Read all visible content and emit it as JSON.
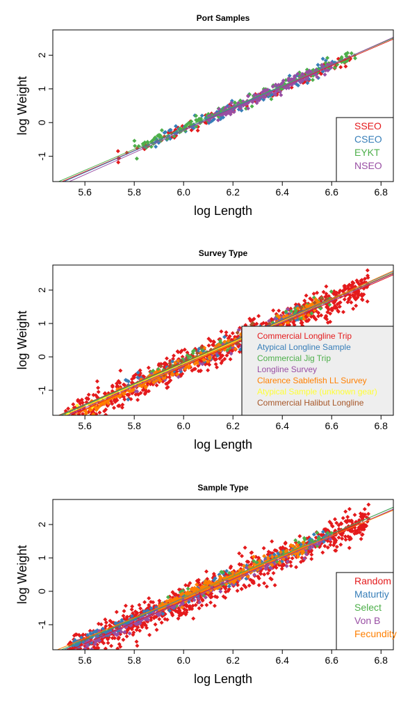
{
  "figure": {
    "axis_style": {
      "frame_color": "#000000"
    }
  },
  "chart_data": [
    {
      "type": "scatter",
      "title": "Port Samples",
      "xlabel": "log Length",
      "ylabel": "log Weight",
      "xlim": [
        5.47,
        6.85
      ],
      "ylim": [
        -1.75,
        2.75
      ],
      "xticks": [
        5.6,
        5.8,
        6.0,
        6.2,
        6.4,
        6.6,
        6.8
      ],
      "yticks": [
        -1,
        0,
        1,
        2
      ],
      "xtick_labels": [
        "5.6",
        "5.8",
        "6.0",
        "6.2",
        "6.4",
        "6.6",
        "6.8"
      ],
      "ytick_labels": [
        "-1",
        "0",
        "1",
        "2"
      ],
      "grid": false,
      "legend": {
        "position": "bottom-right",
        "background": "#ffffff",
        "font_size": "large"
      },
      "series": [
        {
          "name": "SSEO",
          "color": "#e41a1c",
          "x_range": [
            5.73,
            6.68
          ],
          "n": 110,
          "spread": 0.09,
          "fit": {
            "intercept": -19.1,
            "slope": 3.15
          }
        },
        {
          "name": "CSEO",
          "color": "#377eb8",
          "x_range": [
            5.88,
            6.62
          ],
          "n": 120,
          "spread": 0.1,
          "fit": {
            "intercept": -19.4,
            "slope": 3.2
          }
        },
        {
          "name": "EYKT",
          "color": "#4daf4a",
          "x_range": [
            5.8,
            6.72
          ],
          "n": 140,
          "spread": 0.09,
          "fit": {
            "intercept": -19.0,
            "slope": 3.14
          }
        },
        {
          "name": "NSEO",
          "color": "#984ea3",
          "x_range": [
            6.1,
            6.6
          ],
          "n": 170,
          "spread": 0.08,
          "fit": {
            "intercept": -19.8,
            "slope": 3.26
          }
        }
      ]
    },
    {
      "type": "scatter",
      "title": "Survey Type",
      "xlabel": "log Length",
      "ylabel": "log Weight",
      "xlim": [
        5.47,
        6.85
      ],
      "ylim": [
        -1.75,
        2.75
      ],
      "xticks": [
        5.6,
        5.8,
        6.0,
        6.2,
        6.4,
        6.6,
        6.8
      ],
      "yticks": [
        -1,
        0,
        1,
        2
      ],
      "xtick_labels": [
        "5.6",
        "5.8",
        "6.0",
        "6.2",
        "6.4",
        "6.6",
        "6.8"
      ],
      "ytick_labels": [
        "-1",
        "0",
        "1",
        "2"
      ],
      "grid": false,
      "legend": {
        "position": "bottom-right",
        "background": "#eeeeee",
        "font_size": "small"
      },
      "series": [
        {
          "name": "Commercial Longline Trip",
          "color": "#e41a1c",
          "x_range": [
            5.52,
            6.75
          ],
          "n": 900,
          "spread": 0.22,
          "fit": {
            "intercept": -19.6,
            "slope": 3.22
          }
        },
        {
          "name": "Atypical Longline Sample",
          "color": "#377eb8",
          "x_range": [
            5.75,
            6.5
          ],
          "n": 80,
          "spread": 0.12,
          "fit": {
            "intercept": -19.3,
            "slope": 3.19
          }
        },
        {
          "name": "Commercial Jig Trip",
          "color": "#4daf4a",
          "x_range": [
            5.85,
            6.6
          ],
          "n": 110,
          "spread": 0.12,
          "fit": {
            "intercept": -19.2,
            "slope": 3.17
          }
        },
        {
          "name": "Longline Survey",
          "color": "#984ea3",
          "x_range": [
            5.8,
            6.5
          ],
          "n": 70,
          "spread": 0.12,
          "fit": {
            "intercept": -19.5,
            "slope": 3.21
          }
        },
        {
          "name": "Clarence Sablefish LL Survey",
          "color": "#ff7f00",
          "x_range": [
            5.6,
            6.55
          ],
          "n": 260,
          "spread": 0.1,
          "fit": {
            "intercept": -20.3,
            "slope": 3.34
          }
        },
        {
          "name": "Atypical Sample (unknown gear)",
          "color": "#ffff33",
          "x_range": [
            5.52,
            5.7
          ],
          "n": 6,
          "spread": 0.08,
          "fit": {
            "intercept": -19.4,
            "slope": 3.2
          }
        },
        {
          "name": "Commercial Halibut Longline",
          "color": "#a65628",
          "x_range": [
            5.9,
            6.6
          ],
          "n": 30,
          "spread": 0.12,
          "fit": {
            "intercept": -19.0,
            "slope": 3.14
          }
        }
      ]
    },
    {
      "type": "scatter",
      "title": "Sample Type",
      "xlabel": "log Length",
      "ylabel": "log Weight",
      "xlim": [
        5.47,
        6.85
      ],
      "ylim": [
        -1.75,
        2.75
      ],
      "xticks": [
        5.6,
        5.8,
        6.0,
        6.2,
        6.4,
        6.6,
        6.8
      ],
      "yticks": [
        -1,
        0,
        1,
        2
      ],
      "xtick_labels": [
        "5.6",
        "5.8",
        "6.0",
        "6.2",
        "6.4",
        "6.6",
        "6.8"
      ],
      "ytick_labels": [
        "-1",
        "0",
        "1",
        "2"
      ],
      "grid": false,
      "legend": {
        "position": "bottom-right",
        "background": "#ffffff",
        "font_size": "large"
      },
      "series": [
        {
          "name": "Random",
          "color": "#e41a1c",
          "x_range": [
            5.52,
            6.75
          ],
          "n": 950,
          "spread": 0.22,
          "fit": {
            "intercept": -19.6,
            "slope": 3.22
          }
        },
        {
          "name": "Maturtiy",
          "color": "#377eb8",
          "x_range": [
            5.55,
            6.6
          ],
          "n": 220,
          "spread": 0.1,
          "fit": {
            "intercept": -19.4,
            "slope": 3.2
          }
        },
        {
          "name": "Select",
          "color": "#4daf4a",
          "x_range": [
            5.85,
            6.6
          ],
          "n": 80,
          "spread": 0.12,
          "fit": {
            "intercept": -19.2,
            "slope": 3.17
          }
        },
        {
          "name": "Von B",
          "color": "#984ea3",
          "x_range": [
            5.6,
            6.6
          ],
          "n": 160,
          "spread": 0.1,
          "fit": {
            "intercept": -19.8,
            "slope": 3.25
          }
        },
        {
          "name": "Fecundity",
          "color": "#ff7f00",
          "x_range": [
            5.9,
            6.5
          ],
          "n": 220,
          "spread": 0.09,
          "fit": {
            "intercept": -18.6,
            "slope": 3.07
          }
        }
      ]
    }
  ]
}
